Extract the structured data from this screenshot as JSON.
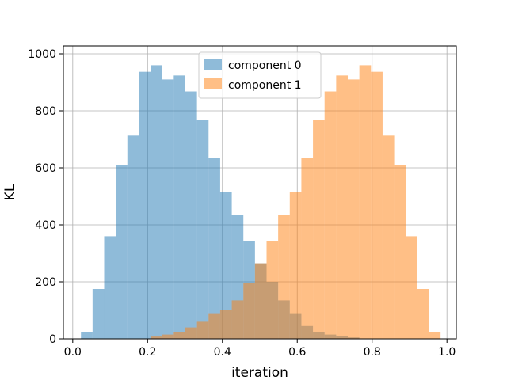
{
  "chart_data": {
    "type": "bar",
    "title": "",
    "xlabel": "iteration",
    "ylabel": "KL",
    "xlim": [
      -0.0,
      1.0
    ],
    "ylim": [
      0,
      1000
    ],
    "xticks": [
      "0.0",
      "0.2",
      "0.4",
      "0.6",
      "0.8",
      "1.0"
    ],
    "yticks": [
      "0",
      "200",
      "400",
      "600",
      "800",
      "1000"
    ],
    "grid": true,
    "legend": "top-center",
    "bin_width": 0.031,
    "series": [
      {
        "name": "component 0",
        "color": "#1f77b4",
        "alpha": 0.5,
        "bins": [
          {
            "x0": 0.022,
            "value": 25
          },
          {
            "x0": 0.053,
            "value": 175
          },
          {
            "x0": 0.084,
            "value": 360
          },
          {
            "x0": 0.115,
            "value": 610
          },
          {
            "x0": 0.146,
            "value": 713
          },
          {
            "x0": 0.177,
            "value": 937
          },
          {
            "x0": 0.208,
            "value": 960
          },
          {
            "x0": 0.239,
            "value": 910
          },
          {
            "x0": 0.27,
            "value": 924
          },
          {
            "x0": 0.301,
            "value": 868
          },
          {
            "x0": 0.332,
            "value": 768
          },
          {
            "x0": 0.363,
            "value": 635
          },
          {
            "x0": 0.394,
            "value": 515
          },
          {
            "x0": 0.425,
            "value": 435
          },
          {
            "x0": 0.456,
            "value": 343
          },
          {
            "x0": 0.487,
            "value": 265
          },
          {
            "x0": 0.518,
            "value": 200
          },
          {
            "x0": 0.549,
            "value": 135
          },
          {
            "x0": 0.58,
            "value": 90
          },
          {
            "x0": 0.611,
            "value": 45
          },
          {
            "x0": 0.642,
            "value": 25
          },
          {
            "x0": 0.673,
            "value": 15
          },
          {
            "x0": 0.704,
            "value": 10
          },
          {
            "x0": 0.735,
            "value": 5
          }
        ]
      },
      {
        "name": "component 1",
        "color": "#ff7f0e",
        "alpha": 0.5,
        "bins": [
          {
            "x0": 0.208,
            "value": 8
          },
          {
            "x0": 0.239,
            "value": 15
          },
          {
            "x0": 0.27,
            "value": 25
          },
          {
            "x0": 0.301,
            "value": 40
          },
          {
            "x0": 0.332,
            "value": 60
          },
          {
            "x0": 0.363,
            "value": 90
          },
          {
            "x0": 0.394,
            "value": 100
          },
          {
            "x0": 0.425,
            "value": 135
          },
          {
            "x0": 0.456,
            "value": 195
          },
          {
            "x0": 0.487,
            "value": 265
          },
          {
            "x0": 0.518,
            "value": 343
          },
          {
            "x0": 0.549,
            "value": 435
          },
          {
            "x0": 0.58,
            "value": 515
          },
          {
            "x0": 0.611,
            "value": 635
          },
          {
            "x0": 0.642,
            "value": 768
          },
          {
            "x0": 0.673,
            "value": 868
          },
          {
            "x0": 0.704,
            "value": 924
          },
          {
            "x0": 0.735,
            "value": 910
          },
          {
            "x0": 0.766,
            "value": 960
          },
          {
            "x0": 0.797,
            "value": 937
          },
          {
            "x0": 0.828,
            "value": 713
          },
          {
            "x0": 0.859,
            "value": 610
          },
          {
            "x0": 0.89,
            "value": 360
          },
          {
            "x0": 0.921,
            "value": 175
          },
          {
            "x0": 0.952,
            "value": 25
          }
        ]
      }
    ]
  }
}
